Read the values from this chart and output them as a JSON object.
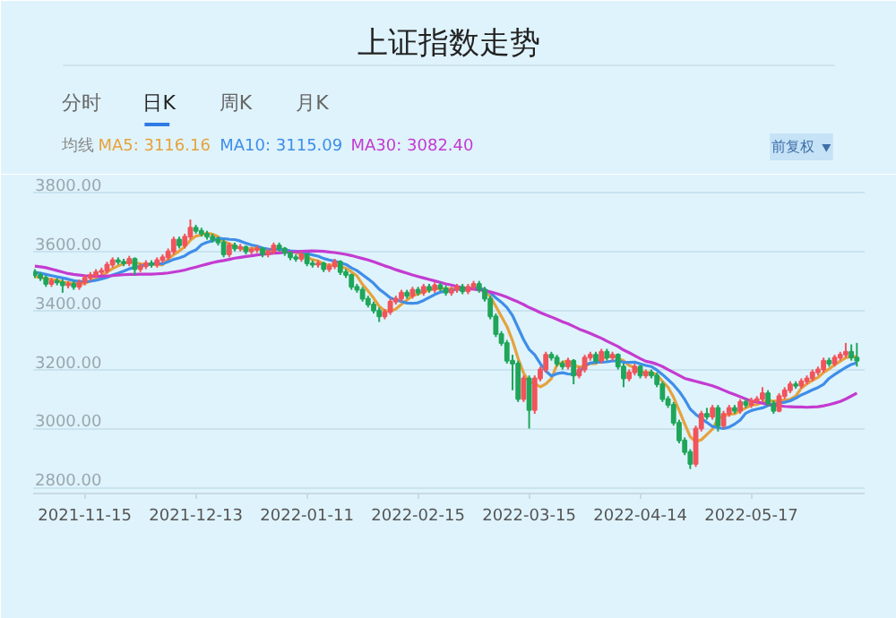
{
  "chart_data": {
    "type": "candlestick",
    "title": "上证指数走势",
    "annotations": [
      "分时",
      "日K",
      "周K",
      "月K",
      "前复权"
    ],
    "legend_title": "均线",
    "legend": "top left",
    "grid": "y",
    "tick_labels": "xy",
    "ylim": [
      2780,
      3860
    ],
    "yticks": [
      {
        "value": 2800,
        "label": "2800.00"
      },
      {
        "value": 3000,
        "label": "3000.00"
      },
      {
        "value": 3200,
        "label": "3200.00"
      },
      {
        "value": 3400,
        "label": "3400.00"
      },
      {
        "value": 3600,
        "label": "3600.00"
      },
      {
        "value": 3800,
        "label": "3800.00"
      }
    ],
    "categories": [
      null,
      null,
      null,
      null,
      null,
      null,
      null,
      null,
      null,
      "2021-11-15",
      null,
      null,
      null,
      null,
      null,
      null,
      null,
      null,
      null,
      null,
      null,
      null,
      null,
      null,
      null,
      null,
      null,
      null,
      null,
      "2021-12-13",
      null,
      null,
      null,
      null,
      null,
      null,
      null,
      null,
      null,
      null,
      null,
      null,
      null,
      null,
      null,
      null,
      null,
      null,
      null,
      "2022-01-11",
      null,
      null,
      null,
      null,
      null,
      null,
      null,
      null,
      null,
      null,
      null,
      null,
      null,
      null,
      null,
      null,
      null,
      null,
      null,
      "2022-02-15",
      null,
      null,
      null,
      null,
      null,
      null,
      null,
      null,
      null,
      null,
      null,
      null,
      null,
      null,
      null,
      null,
      null,
      null,
      null,
      "2022-03-15",
      null,
      null,
      null,
      null,
      null,
      null,
      null,
      null,
      null,
      null,
      null,
      null,
      null,
      null,
      null,
      null,
      null,
      null,
      null,
      "2022-04-14",
      null,
      null,
      null,
      null,
      null,
      null,
      null,
      null,
      null,
      null,
      null,
      null,
      null,
      null,
      null,
      null,
      null,
      null,
      null,
      "2022-05-17",
      null,
      null,
      null,
      null,
      null,
      null,
      null,
      null,
      null,
      null,
      null,
      null,
      null,
      null,
      null,
      null,
      null,
      null,
      null
    ],
    "ohlc": [
      [
        3530,
        3540,
        3510,
        3520
      ],
      [
        3520,
        3530,
        3500,
        3510
      ],
      [
        3510,
        3520,
        3480,
        3490
      ],
      [
        3490,
        3510,
        3480,
        3500
      ],
      [
        3500,
        3510,
        3485,
        3495
      ],
      [
        3495,
        3505,
        3460,
        3485
      ],
      [
        3485,
        3500,
        3475,
        3490
      ],
      [
        3490,
        3500,
        3470,
        3480
      ],
      [
        3480,
        3505,
        3470,
        3495
      ],
      [
        3495,
        3520,
        3485,
        3510
      ],
      [
        3510,
        3530,
        3500,
        3520
      ],
      [
        3520,
        3540,
        3510,
        3530
      ],
      [
        3530,
        3545,
        3520,
        3535
      ],
      [
        3535,
        3565,
        3525,
        3555
      ],
      [
        3555,
        3580,
        3545,
        3570
      ],
      [
        3570,
        3580,
        3555,
        3565
      ],
      [
        3565,
        3575,
        3550,
        3560
      ],
      [
        3560,
        3585,
        3550,
        3575
      ],
      [
        3575,
        3580,
        3520,
        3540
      ],
      [
        3540,
        3560,
        3530,
        3550
      ],
      [
        3550,
        3570,
        3540,
        3560
      ],
      [
        3560,
        3570,
        3545,
        3555
      ],
      [
        3555,
        3580,
        3545,
        3570
      ],
      [
        3570,
        3590,
        3560,
        3580
      ],
      [
        3580,
        3610,
        3570,
        3600
      ],
      [
        3600,
        3650,
        3590,
        3640
      ],
      [
        3640,
        3650,
        3610,
        3620
      ],
      [
        3620,
        3660,
        3610,
        3650
      ],
      [
        3650,
        3708,
        3640,
        3680
      ],
      [
        3680,
        3690,
        3660,
        3670
      ],
      [
        3670,
        3680,
        3650,
        3660
      ],
      [
        3660,
        3670,
        3640,
        3650
      ],
      [
        3650,
        3660,
        3630,
        3640
      ],
      [
        3640,
        3650,
        3620,
        3630
      ],
      [
        3630,
        3640,
        3580,
        3590
      ],
      [
        3590,
        3630,
        3580,
        3620
      ],
      [
        3620,
        3630,
        3600,
        3610
      ],
      [
        3610,
        3625,
        3600,
        3615
      ],
      [
        3615,
        3620,
        3590,
        3600
      ],
      [
        3600,
        3615,
        3590,
        3605
      ],
      [
        3605,
        3620,
        3595,
        3610
      ],
      [
        3610,
        3615,
        3580,
        3590
      ],
      [
        3590,
        3610,
        3580,
        3600
      ],
      [
        3600,
        3630,
        3590,
        3620
      ],
      [
        3620,
        3630,
        3600,
        3610
      ],
      [
        3610,
        3615,
        3585,
        3595
      ],
      [
        3595,
        3600,
        3570,
        3580
      ],
      [
        3580,
        3590,
        3565,
        3575
      ],
      [
        3575,
        3600,
        3565,
        3590
      ],
      [
        3590,
        3595,
        3550,
        3560
      ],
      [
        3560,
        3570,
        3545,
        3555
      ],
      [
        3555,
        3570,
        3545,
        3560
      ],
      [
        3560,
        3565,
        3530,
        3540
      ],
      [
        3540,
        3560,
        3530,
        3550
      ],
      [
        3550,
        3575,
        3540,
        3565
      ],
      [
        3565,
        3570,
        3520,
        3530
      ],
      [
        3530,
        3540,
        3510,
        3520
      ],
      [
        3520,
        3525,
        3470,
        3480
      ],
      [
        3480,
        3490,
        3460,
        3470
      ],
      [
        3470,
        3480,
        3430,
        3440
      ],
      [
        3440,
        3450,
        3410,
        3420
      ],
      [
        3420,
        3430,
        3390,
        3400
      ],
      [
        3400,
        3410,
        3361,
        3380
      ],
      [
        3380,
        3405,
        3370,
        3395
      ],
      [
        3395,
        3440,
        3385,
        3430
      ],
      [
        3430,
        3450,
        3420,
        3440
      ],
      [
        3440,
        3470,
        3430,
        3460
      ],
      [
        3460,
        3470,
        3440,
        3450
      ],
      [
        3450,
        3480,
        3440,
        3470
      ],
      [
        3470,
        3480,
        3450,
        3460
      ],
      [
        3460,
        3490,
        3450,
        3480
      ],
      [
        3480,
        3490,
        3460,
        3470
      ],
      [
        3470,
        3495,
        3460,
        3485
      ],
      [
        3485,
        3495,
        3465,
        3475
      ],
      [
        3475,
        3485,
        3450,
        3460
      ],
      [
        3460,
        3480,
        3450,
        3470
      ],
      [
        3470,
        3490,
        3460,
        3480
      ],
      [
        3480,
        3490,
        3455,
        3465
      ],
      [
        3465,
        3490,
        3455,
        3480
      ],
      [
        3480,
        3500,
        3470,
        3490
      ],
      [
        3490,
        3500,
        3460,
        3470
      ],
      [
        3470,
        3480,
        3430,
        3440
      ],
      [
        3440,
        3450,
        3370,
        3380
      ],
      [
        3380,
        3390,
        3310,
        3320
      ],
      [
        3320,
        3330,
        3280,
        3290
      ],
      [
        3290,
        3300,
        3220,
        3230
      ],
      [
        3230,
        3250,
        3130,
        3220
      ],
      [
        3220,
        3230,
        3090,
        3100
      ],
      [
        3100,
        3180,
        3090,
        3170
      ],
      [
        3170,
        3180,
        3000,
        3063
      ],
      [
        3063,
        3180,
        3050,
        3170
      ],
      [
        3170,
        3210,
        3160,
        3200
      ],
      [
        3200,
        3260,
        3190,
        3250
      ],
      [
        3250,
        3260,
        3230,
        3240
      ],
      [
        3240,
        3250,
        3210,
        3220
      ],
      [
        3220,
        3230,
        3200,
        3210
      ],
      [
        3210,
        3240,
        3200,
        3230
      ],
      [
        3230,
        3235,
        3150,
        3180
      ],
      [
        3180,
        3210,
        3170,
        3200
      ],
      [
        3200,
        3250,
        3190,
        3240
      ],
      [
        3240,
        3260,
        3230,
        3250
      ],
      [
        3250,
        3260,
        3220,
        3230
      ],
      [
        3230,
        3270,
        3220,
        3260
      ],
      [
        3260,
        3270,
        3230,
        3240
      ],
      [
        3240,
        3260,
        3230,
        3250
      ],
      [
        3250,
        3255,
        3200,
        3210
      ],
      [
        3210,
        3220,
        3140,
        3170
      ],
      [
        3170,
        3200,
        3160,
        3190
      ],
      [
        3190,
        3220,
        3180,
        3210
      ],
      [
        3210,
        3215,
        3170,
        3180
      ],
      [
        3180,
        3200,
        3170,
        3190
      ],
      [
        3190,
        3200,
        3170,
        3180
      ],
      [
        3180,
        3190,
        3140,
        3150
      ],
      [
        3150,
        3160,
        3090,
        3100
      ],
      [
        3100,
        3110,
        3070,
        3080
      ],
      [
        3080,
        3090,
        3010,
        3020
      ],
      [
        3020,
        3030,
        2950,
        2960
      ],
      [
        2960,
        2970,
        2910,
        2920
      ],
      [
        2920,
        2930,
        2863,
        2880
      ],
      [
        2880,
        3010,
        2870,
        3000
      ],
      [
        3000,
        3060,
        2990,
        3050
      ],
      [
        3050,
        3070,
        3030,
        3040
      ],
      [
        3040,
        3080,
        3030,
        3070
      ],
      [
        3070,
        3080,
        2990,
        3010
      ],
      [
        3010,
        3060,
        3000,
        3050
      ],
      [
        3050,
        3080,
        3040,
        3070
      ],
      [
        3070,
        3080,
        3050,
        3060
      ],
      [
        3060,
        3100,
        3050,
        3090
      ],
      [
        3090,
        3100,
        3070,
        3080
      ],
      [
        3080,
        3105,
        3070,
        3095
      ],
      [
        3095,
        3110,
        3085,
        3100
      ],
      [
        3100,
        3140,
        3090,
        3120
      ],
      [
        3120,
        3130,
        3075,
        3085
      ],
      [
        3085,
        3095,
        3050,
        3060
      ],
      [
        3060,
        3120,
        3055,
        3110
      ],
      [
        3110,
        3140,
        3100,
        3130
      ],
      [
        3130,
        3160,
        3120,
        3150
      ],
      [
        3150,
        3160,
        3135,
        3145
      ],
      [
        3145,
        3170,
        3135,
        3160
      ],
      [
        3160,
        3180,
        3150,
        3170
      ],
      [
        3170,
        3200,
        3160,
        3190
      ],
      [
        3190,
        3210,
        3180,
        3200
      ],
      [
        3200,
        3240,
        3190,
        3230
      ],
      [
        3230,
        3240,
        3210,
        3220
      ],
      [
        3220,
        3250,
        3210,
        3240
      ],
      [
        3240,
        3260,
        3230,
        3250
      ],
      [
        3250,
        3290,
        3240,
        3260
      ],
      [
        3260,
        3285,
        3230,
        3240
      ],
      [
        3240,
        3290,
        3210,
        3230
      ]
    ],
    "series": [
      {
        "type": "line",
        "name": "MA5: 3116.16",
        "color": "#e6a23c",
        "values": [
          3515,
          3512,
          3508,
          3505,
          3503,
          3496,
          3494,
          3490,
          3489,
          3492,
          3500,
          3507,
          3518,
          3530,
          3542,
          3551,
          3559,
          3565,
          3562,
          3558,
          3557,
          3556,
          3555,
          3555,
          3573,
          3589,
          3601,
          3616,
          3638,
          3652,
          3656,
          3662,
          3658,
          3650,
          3634,
          3626,
          3618,
          3611,
          3607,
          3610,
          3610,
          3604,
          3605,
          3605,
          3606,
          3603,
          3601,
          3596,
          3590,
          3580,
          3572,
          3568,
          3557,
          3553,
          3554,
          3549,
          3543,
          3531,
          3517,
          3488,
          3466,
          3442,
          3414,
          3399,
          3397,
          3405,
          3421,
          3435,
          3450,
          3456,
          3464,
          3468,
          3473,
          3474,
          3474,
          3474,
          3474,
          3472,
          3471,
          3477,
          3477,
          3467,
          3447,
          3414,
          3380,
          3346,
          3298,
          3238,
          3188,
          3157,
          3153,
          3141,
          3151,
          3169,
          3216,
          3224,
          3230,
          3216,
          3208,
          3212,
          3220,
          3220,
          3234,
          3244,
          3246,
          3238,
          3230,
          3214,
          3206,
          3192,
          3190,
          3190,
          3182,
          3160,
          3140,
          3106,
          3062,
          3016,
          2972,
          2956,
          2962,
          2980,
          2998,
          3034,
          3043,
          3048,
          3050,
          3060,
          3070,
          3079,
          3081,
          3089,
          3096,
          3092,
          3095,
          3097,
          3099,
          3110,
          3137,
          3151,
          3163,
          3173,
          3190,
          3202,
          3216,
          3228,
          3240,
          3244,
          3244
        ]
      },
      {
        "type": "line",
        "name": "MA10: 3115.09",
        "color": "#3f8ee8",
        "values": [
          3530,
          3526,
          3522,
          3518,
          3514,
          3510,
          3506,
          3501,
          3498,
          3498,
          3499,
          3502,
          3507,
          3512,
          3520,
          3526,
          3533,
          3541,
          3546,
          3550,
          3554,
          3557,
          3560,
          3558,
          3565,
          3573,
          3578,
          3585,
          3597,
          3605,
          3623,
          3631,
          3636,
          3644,
          3643,
          3641,
          3640,
          3635,
          3628,
          3622,
          3618,
          3611,
          3608,
          3606,
          3608,
          3606,
          3602,
          3600,
          3598,
          3593,
          3588,
          3584,
          3576,
          3571,
          3567,
          3561,
          3556,
          3544,
          3535,
          3521,
          3507,
          3492,
          3472,
          3458,
          3443,
          3435,
          3431,
          3425,
          3424,
          3426,
          3434,
          3444,
          3454,
          3462,
          3465,
          3469,
          3471,
          3472,
          3472,
          3475,
          3475,
          3471,
          3460,
          3443,
          3428,
          3410,
          3383,
          3342,
          3301,
          3268,
          3250,
          3220,
          3195,
          3178,
          3186,
          3189,
          3185,
          3183,
          3189,
          3214,
          3222,
          3225,
          3225,
          3226,
          3229,
          3229,
          3225,
          3224,
          3225,
          3219,
          3214,
          3210,
          3198,
          3183,
          3166,
          3148,
          3126,
          3099,
          3066,
          3048,
          3034,
          3021,
          3007,
          3003,
          3000,
          3005,
          3015,
          3029,
          3052,
          3061,
          3066,
          3070,
          3078,
          3081,
          3087,
          3089,
          3094,
          3103,
          3114,
          3122,
          3131,
          3139,
          3150,
          3170,
          3183,
          3195,
          3207,
          3217,
          3223
        ]
      },
      {
        "type": "line",
        "name": "MA30: 3082.40",
        "color": "#c43bd0",
        "values": [
          3550,
          3548,
          3545,
          3540,
          3535,
          3530,
          3525,
          3522,
          3520,
          3518,
          3517,
          3516,
          3516,
          3517,
          3518,
          3520,
          3521,
          3522,
          3522,
          3523,
          3523,
          3523,
          3524,
          3525,
          3527,
          3530,
          3533,
          3537,
          3542,
          3547,
          3552,
          3557,
          3562,
          3566,
          3569,
          3573,
          3577,
          3580,
          3583,
          3585,
          3588,
          3590,
          3592,
          3594,
          3595,
          3597,
          3598,
          3599,
          3600,
          3601,
          3602,
          3601,
          3600,
          3598,
          3596,
          3593,
          3590,
          3586,
          3581,
          3576,
          3571,
          3565,
          3558,
          3551,
          3545,
          3538,
          3532,
          3526,
          3520,
          3515,
          3510,
          3505,
          3500,
          3495,
          3490,
          3486,
          3481,
          3477,
          3474,
          3472,
          3470,
          3467,
          3463,
          3458,
          3452,
          3445,
          3437,
          3429,
          3420,
          3410,
          3402,
          3393,
          3385,
          3378,
          3370,
          3362,
          3355,
          3346,
          3337,
          3330,
          3322,
          3314,
          3306,
          3296,
          3287,
          3278,
          3266,
          3257,
          3247,
          3237,
          3228,
          3224,
          3218,
          3210,
          3200,
          3190,
          3180,
          3170,
          3165,
          3160,
          3155,
          3150,
          3145,
          3138,
          3130,
          3122,
          3115,
          3108,
          3100,
          3093,
          3090,
          3086,
          3082,
          3079,
          3077,
          3075,
          3074,
          3073,
          3073,
          3072,
          3073,
          3074,
          3077,
          3081,
          3086,
          3092,
          3100,
          3110,
          3120
        ]
      }
    ]
  }
}
